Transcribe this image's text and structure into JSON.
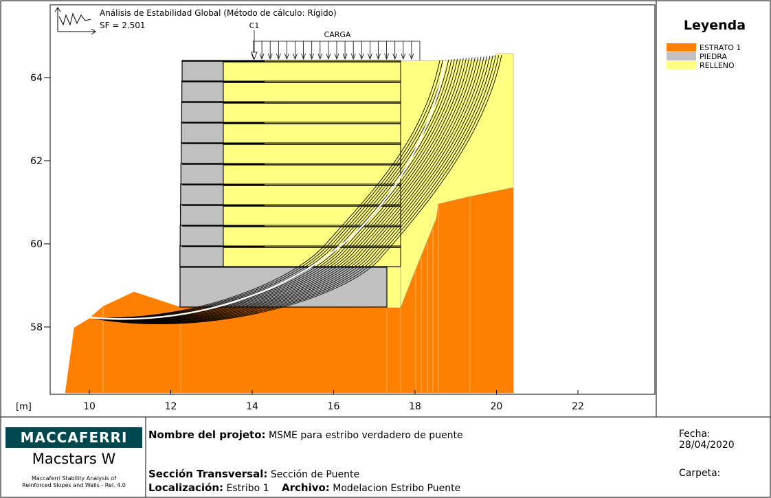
{
  "title": "Análisis de Estabilidad Global (Método de cálculo: Rígido)",
  "safety_factor": "SF = 2.501",
  "load": {
    "point_label": "C1",
    "label": "CARGA"
  },
  "axes": {
    "unit_label": "[m]",
    "x_ticks": [
      "10",
      "12",
      "14",
      "16",
      "18",
      "20",
      "22"
    ],
    "y_ticks": [
      "58",
      "60",
      "62",
      "64"
    ]
  },
  "legend": {
    "title": "Leyenda",
    "items": [
      {
        "label": "ESTRATO 1",
        "color": "#ff8000"
      },
      {
        "label": "PIEDRA",
        "color": "#c0c0c0"
      },
      {
        "label": "RELLENO",
        "color": "#ffff80"
      }
    ]
  },
  "footer": {
    "brand": "MACCAFERRI",
    "product": "Macstars W",
    "description_line1": "Maccaferri Stability Analysis of",
    "description_line2": "Reinforced Slopes and Walls - Rel. 4.0",
    "project_label": "Nombre del projeto:",
    "project_value": "MSME para estribo verdadero de puente",
    "section_label": "Sección Transversal:",
    "section_value": "Sección de Puente",
    "location_label": "Localización:",
    "location_value": "Estribo 1",
    "file_label": "Archivo:",
    "file_value": "Modelacion Estribo Puente",
    "date_label": "Fecha:",
    "date_value": "28/04/2020",
    "folder_label": "Carpeta:"
  },
  "colors": {
    "estrato": "#ff8000",
    "piedra": "#c0c0c0",
    "relleno": "#ffff80",
    "brand": "#00474f"
  }
}
